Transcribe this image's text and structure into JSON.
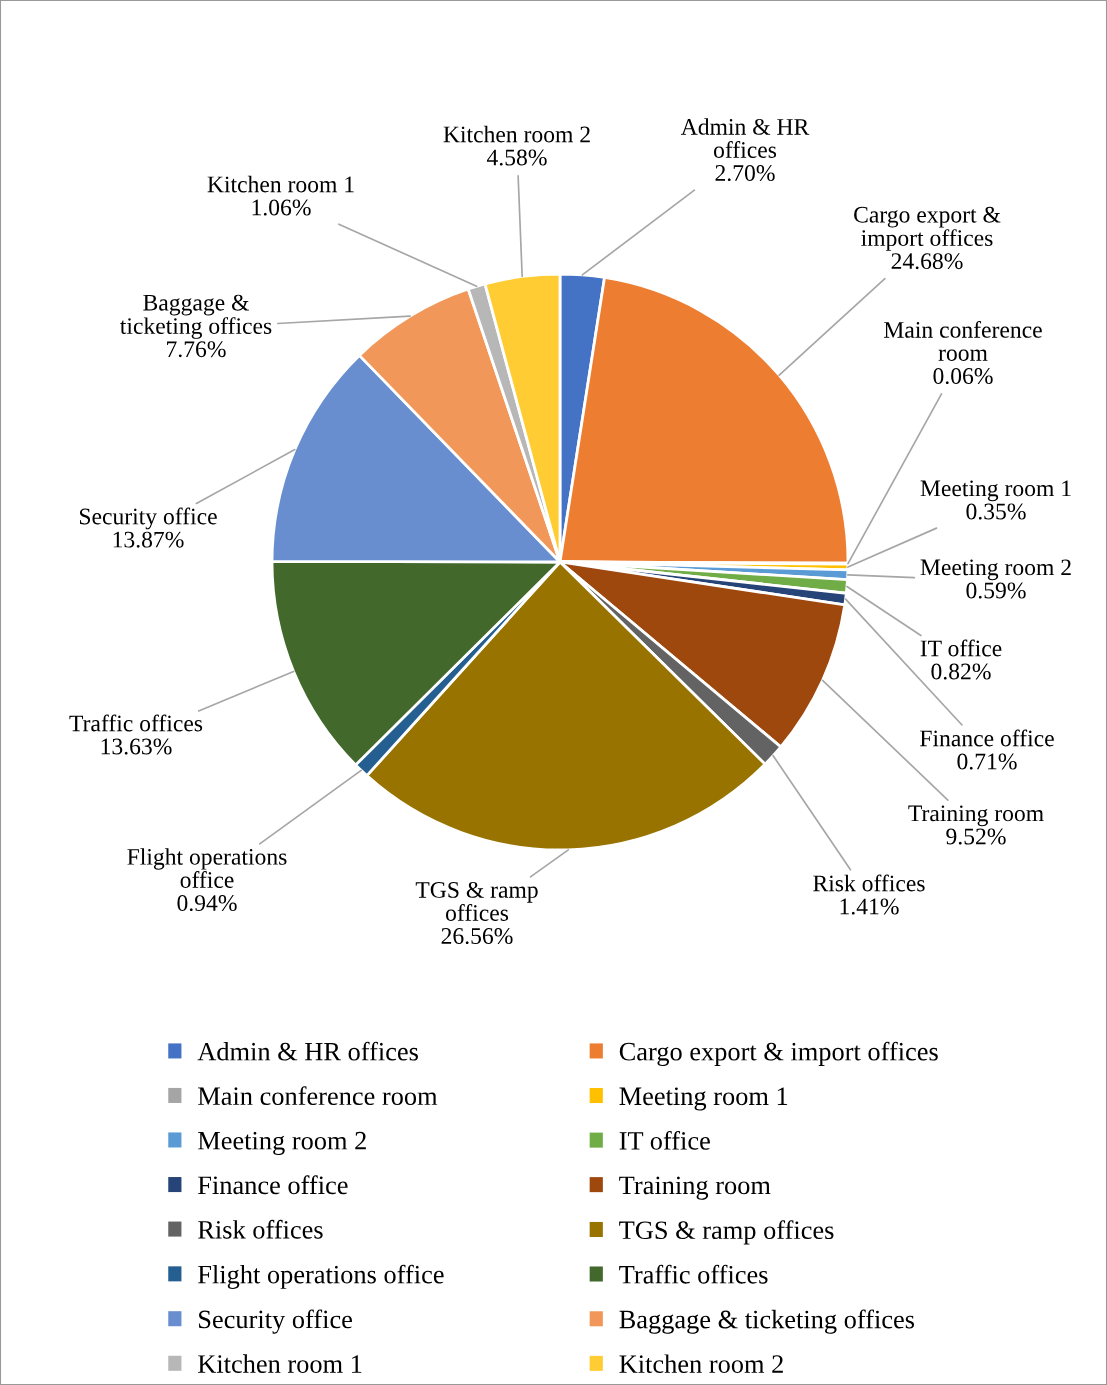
{
  "chart_data": {
    "type": "pie",
    "categories": [
      "Admin & HR offices",
      "Cargo export & import offices",
      "Main conference room",
      "Meeting room 1",
      "Meeting room 2",
      "IT office",
      "Finance office",
      "Training room",
      "Risk offices",
      "TGS & ramp offices",
      "Flight operations office",
      "Traffic offices",
      "Security office",
      "Baggage & ticketing offices",
      "Kitchen room 1",
      "Kitchen room 2"
    ],
    "values": [
      2.7,
      24.68,
      0.06,
      0.35,
      0.59,
      0.82,
      0.71,
      9.52,
      1.41,
      26.56,
      0.94,
      13.63,
      13.87,
      7.76,
      1.06,
      4.58
    ],
    "colors": [
      "#4472c4",
      "#ed7d31",
      "#a5a5a5",
      "#ffc000",
      "#5b9bd5",
      "#70ad47",
      "#264478",
      "#9e480e",
      "#636363",
      "#997300",
      "#255e91",
      "#43682b",
      "#698ed0",
      "#f1975a",
      "#b7b7b7",
      "#ffcd33"
    ],
    "value_labels": [
      "Admin & HR\noffices\n2.70%",
      "Cargo export &\nimport offices\n24.68%",
      "Main conference\nroom\n0.06%",
      "Meeting room 1\n0.35%",
      "Meeting room 2\n0.59%",
      "IT office\n0.82%",
      "Finance office\n0.71%",
      "Training room\n9.52%",
      "Risk offices\n1.41%",
      "TGS & ramp\noffices\n26.56%",
      "Flight operations\noffice\n0.94%",
      "Traffic offices\n13.63%",
      "Security office\n13.87%",
      "Baggage &\nticketing offices\n7.76%",
      "Kitchen room 1\n1.06%",
      "Kitchen room 2\n4.58%"
    ],
    "legend": "bottom"
  }
}
